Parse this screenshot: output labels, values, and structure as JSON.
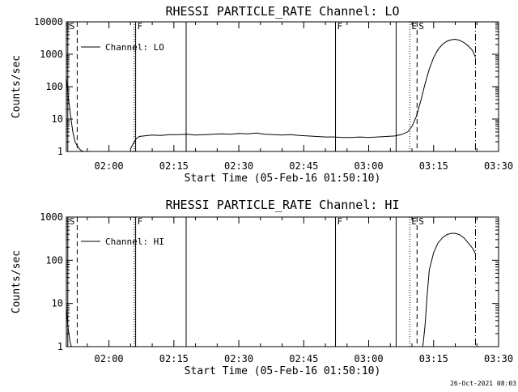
{
  "chart_data": [
    {
      "type": "line",
      "title": "RHESSI PARTICLE_RATE Channel: LO",
      "xlabel": "Start Time (05-Feb-16 01:50:10)",
      "ylabel": "Counts/sec",
      "y_scale": "log",
      "ylim": [
        1,
        10000
      ],
      "xlim": [
        "01:50:10",
        "03:30:00"
      ],
      "x_ticks": [
        "02:00",
        "02:15",
        "02:30",
        "02:45",
        "03:00",
        "03:15",
        "03:30"
      ],
      "y_ticks": [
        "1",
        "10",
        "100",
        "1000",
        "10000"
      ],
      "legend": {
        "position": "top-left",
        "entries": [
          "Channel: LO"
        ]
      },
      "grid": false,
      "markers": [
        {
          "label": "S",
          "time": "01:50:30",
          "style": "solid"
        },
        {
          "label": "",
          "time": "01:52:40",
          "style": "dashed"
        },
        {
          "label": "",
          "time": "02:05:50",
          "style": "dotted"
        },
        {
          "label": "F",
          "time": "02:06:10",
          "style": "solid"
        },
        {
          "label": "",
          "time": "02:17:50",
          "style": "solid"
        },
        {
          "label": "F",
          "time": "02:52:20",
          "style": "solid"
        },
        {
          "label": "",
          "time": "03:06:20",
          "style": "solid"
        },
        {
          "label": "E",
          "time": "03:09:30",
          "style": "dotted"
        },
        {
          "label": "S",
          "time": "03:11:10",
          "style": "dashed"
        },
        {
          "label": "",
          "time": "03:24:40",
          "style": "dashdot"
        }
      ],
      "series": [
        {
          "name": "Channel: LO",
          "segments": [
            {
              "x": [
                "01:50:10",
                "01:50:40",
                "01:51:10",
                "01:51:40",
                "01:52:10",
                "01:52:40",
                "01:53:10",
                "01:53:40",
                "01:54:10"
              ],
              "y": [
                200,
                40,
                12,
                4,
                2,
                1.5,
                1.2,
                1.05,
                1
              ]
            },
            {
              "x": [
                "02:05:00",
                "02:05:40",
                "02:06:20",
                "02:07:00",
                "02:08:00",
                "02:10:00",
                "02:12:00",
                "02:14:00",
                "02:16:00",
                "02:18:00",
                "02:20:00",
                "02:22:00",
                "02:24:00",
                "02:26:00",
                "02:28:00",
                "02:30:00",
                "02:32:00",
                "02:34:00",
                "02:36:00",
                "02:38:00",
                "02:40:00",
                "02:42:00",
                "02:44:00",
                "02:46:00",
                "02:48:00",
                "02:50:00",
                "02:52:00",
                "02:54:00",
                "02:56:00",
                "02:58:00",
                "03:00:00",
                "03:02:00",
                "03:04:00",
                "03:06:00",
                "03:07:30",
                "03:09:00",
                "03:10:00",
                "03:11:00",
                "03:12:00",
                "03:13:00",
                "03:14:00",
                "03:15:00",
                "03:16:00",
                "03:17:00",
                "03:18:00",
                "03:19:00",
                "03:20:00",
                "03:21:00",
                "03:22:00",
                "03:23:00",
                "03:24:00",
                "03:24:40"
              ],
              "y": [
                1.2,
                1.8,
                2.5,
                2.9,
                3.0,
                3.2,
                3.1,
                3.3,
                3.3,
                3.4,
                3.2,
                3.3,
                3.4,
                3.5,
                3.4,
                3.6,
                3.5,
                3.7,
                3.4,
                3.3,
                3.2,
                3.3,
                3.1,
                3.0,
                2.9,
                2.8,
                2.8,
                2.7,
                2.7,
                2.8,
                2.7,
                2.8,
                2.9,
                3.0,
                3.3,
                4.0,
                6.0,
                12,
                35,
                120,
                350,
                800,
                1400,
                2000,
                2500,
                2800,
                2900,
                2700,
                2300,
                1800,
                1300,
                800
              ]
            }
          ]
        }
      ]
    },
    {
      "type": "line",
      "title": "RHESSI PARTICLE_RATE Channel: HI",
      "xlabel": "Start Time (05-Feb-16 01:50:10)",
      "ylabel": "Counts/sec",
      "y_scale": "log",
      "ylim": [
        1,
        1000
      ],
      "xlim": [
        "01:50:10",
        "03:30:00"
      ],
      "x_ticks": [
        "02:00",
        "02:15",
        "02:30",
        "02:45",
        "03:00",
        "03:15",
        "03:30"
      ],
      "y_ticks": [
        "1",
        "10",
        "100",
        "1000"
      ],
      "legend": {
        "position": "top-left",
        "entries": [
          "Channel: HI"
        ]
      },
      "grid": false,
      "markers": [
        {
          "label": "S",
          "time": "01:50:30",
          "style": "solid"
        },
        {
          "label": "",
          "time": "01:52:40",
          "style": "dashed"
        },
        {
          "label": "",
          "time": "02:05:50",
          "style": "dotted"
        },
        {
          "label": "F",
          "time": "02:06:10",
          "style": "solid"
        },
        {
          "label": "",
          "time": "02:17:50",
          "style": "solid"
        },
        {
          "label": "F",
          "time": "02:52:20",
          "style": "solid"
        },
        {
          "label": "",
          "time": "03:06:20",
          "style": "solid"
        },
        {
          "label": "E",
          "time": "03:09:30",
          "style": "dotted"
        },
        {
          "label": "S",
          "time": "03:11:10",
          "style": "dashed"
        },
        {
          "label": "",
          "time": "03:24:40",
          "style": "dashdot"
        }
      ],
      "series": [
        {
          "name": "Channel: HI",
          "segments": [
            {
              "x": [
                "01:50:10",
                "01:50:30",
                "01:51:00",
                "01:51:20"
              ],
              "y": [
                8,
                3,
                1.3,
                1
              ]
            },
            {
              "x": [
                "03:12:30",
                "03:13:00",
                "03:13:30",
                "03:14:00",
                "03:15:00",
                "03:16:00",
                "03:17:00",
                "03:18:00",
                "03:19:00",
                "03:20:00",
                "03:21:00",
                "03:22:00",
                "03:23:00",
                "03:24:00",
                "03:24:40"
              ],
              "y": [
                1,
                3,
                15,
                60,
                150,
                250,
                330,
                390,
                420,
                420,
                390,
                330,
                250,
                190,
                140
              ]
            }
          ]
        }
      ]
    }
  ],
  "footer": {
    "timestamp": "26-Oct-2021 08:03"
  }
}
